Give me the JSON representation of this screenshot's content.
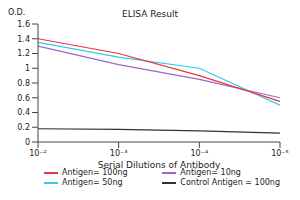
{
  "chart_data": {
    "type": "line",
    "title": "ELISA Result",
    "y_label": "O.D.",
    "x_label": "Serial Dilutions of Antibody",
    "log": "x",
    "grid": false,
    "legend": "bottom",
    "x": [
      0.01,
      0.001,
      0.0001,
      1e-05
    ],
    "xlim": [
      0.01,
      1e-05
    ],
    "xticks": [
      {
        "value": 0.01,
        "label": "10⁻²"
      },
      {
        "value": 0.001,
        "label": "10⁻³"
      },
      {
        "value": 0.0001,
        "label": "10⁻⁴"
      },
      {
        "value": 1e-05,
        "label": "10⁻⁵"
      }
    ],
    "ylim": [
      0,
      1.6
    ],
    "yticks": [
      0,
      0.2,
      0.4,
      0.6,
      0.8,
      1,
      1.2,
      1.4,
      1.6
    ],
    "series": [
      {
        "name": "Control Antigen = 100ng",
        "color": "#333333",
        "values": [
          0.18,
          0.17,
          0.15,
          0.12
        ]
      },
      {
        "name": "Antigen= 10ng",
        "color": "#9966cc",
        "values": [
          1.3,
          1.05,
          0.85,
          0.6
        ]
      },
      {
        "name": "Antigen= 50ng",
        "color": "#33c8ee",
        "values": [
          1.35,
          1.15,
          1.0,
          0.5
        ]
      },
      {
        "name": "Antigen= 100ng",
        "color": "#ee3333",
        "values": [
          1.4,
          1.2,
          0.9,
          0.55
        ]
      }
    ]
  }
}
